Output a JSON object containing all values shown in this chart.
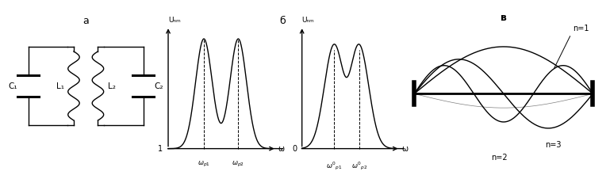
{
  "bg_color": "#ffffff",
  "label_a": "a",
  "label_b": "б",
  "label_v": "в",
  "c1_label": "C₁",
  "l1_label": "L₁",
  "l2_label": "L₂",
  "c2_label": "C₂",
  "ucm_label": "Uₙₘ",
  "omega_label": "ω",
  "left_axis_label": "1",
  "right_axis_label": "0",
  "omega_p1": "ωₚ₁",
  "omega_p2": "ωₚ₂",
  "omega_p1_prime": "ω'ₚ₁",
  "omega_p2_prime": "ω'ₚ₂",
  "n1_label": "n=1",
  "n2_label": "n=2",
  "n3_label": "n=3"
}
